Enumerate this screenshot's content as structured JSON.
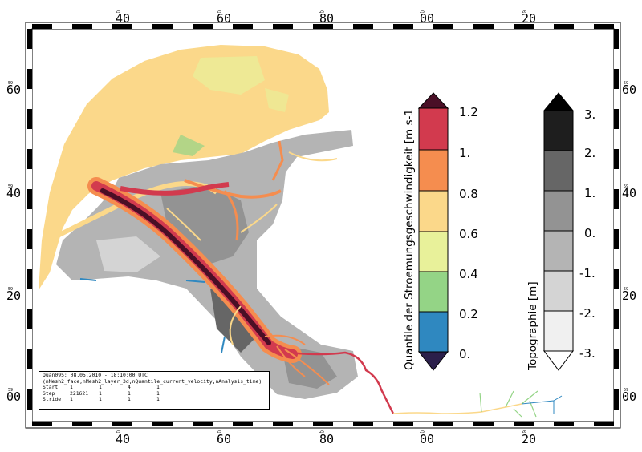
{
  "map": {
    "top_axis": {
      "ticks": [
        {
          "deg": "25",
          "min": "40"
        },
        {
          "deg": "25",
          "min": "60"
        },
        {
          "deg": "25",
          "min": "80"
        },
        {
          "deg": "25",
          "min": "00"
        },
        {
          "deg": "26",
          "min": "20"
        }
      ]
    },
    "bottom_axis": {
      "ticks": [
        {
          "deg": "25",
          "min": "40"
        },
        {
          "deg": "25",
          "min": "60"
        },
        {
          "deg": "25",
          "min": "80"
        },
        {
          "deg": "25",
          "min": "00"
        },
        {
          "deg": "26",
          "min": "20"
        }
      ]
    },
    "left_axis": {
      "ticks": [
        {
          "deg": "59",
          "min": "60"
        },
        {
          "deg": "59",
          "min": "40"
        },
        {
          "deg": "59",
          "min": "20"
        },
        {
          "deg": "59",
          "min": "00"
        }
      ]
    },
    "right_axis": {
      "ticks": [
        {
          "deg": "59",
          "min": "60"
        },
        {
          "deg": "59",
          "min": "40"
        },
        {
          "deg": "59",
          "min": "20"
        },
        {
          "deg": "59",
          "min": "00"
        }
      ]
    }
  },
  "velocity_legend": {
    "title": "Quantile der Stroemungsgeschwindigkeit  [m s-1",
    "labels": [
      "1.2",
      "1.",
      "0.8",
      "0.6",
      "0.4",
      "0.2",
      "0."
    ],
    "colors": {
      "over": "#4a0f26",
      "band6": "#d23a4e",
      "band5": "#f58d4f",
      "band4": "#fbd88a",
      "band3": "#e8f19a",
      "band2": "#94d486",
      "band1": "#2f88c0",
      "under": "#2b1f4a"
    }
  },
  "topo_legend": {
    "title": "Topographie  [m]",
    "labels": [
      "3.",
      "2.",
      "1.",
      "0.",
      "-1.",
      "-2.",
      "-3."
    ],
    "colors": {
      "over": "#000000",
      "band6": "#1e1e1e",
      "band5": "#666666",
      "band4": "#939393",
      "band3": "#b4b4b4",
      "band2": "#d4d4d4",
      "band1": "#f0f0f0",
      "under": "#ffffff"
    }
  },
  "info": {
    "title": "Quan095: 08.05.2010 - 18:10:00 UTC",
    "subtitle": "(nMesh2_face,nMesh2_layer_3d,nQuantile_current_velocity,nAnalysis_time)",
    "rows": [
      {
        "key": "Start",
        "values": [
          "1",
          "1",
          "4",
          "1"
        ]
      },
      {
        "key": "Step",
        "values": [
          "221621",
          "1",
          "1",
          "1"
        ]
      },
      {
        "key": "Stride",
        "values": [
          "1",
          "1",
          "1",
          "1"
        ]
      }
    ]
  }
}
